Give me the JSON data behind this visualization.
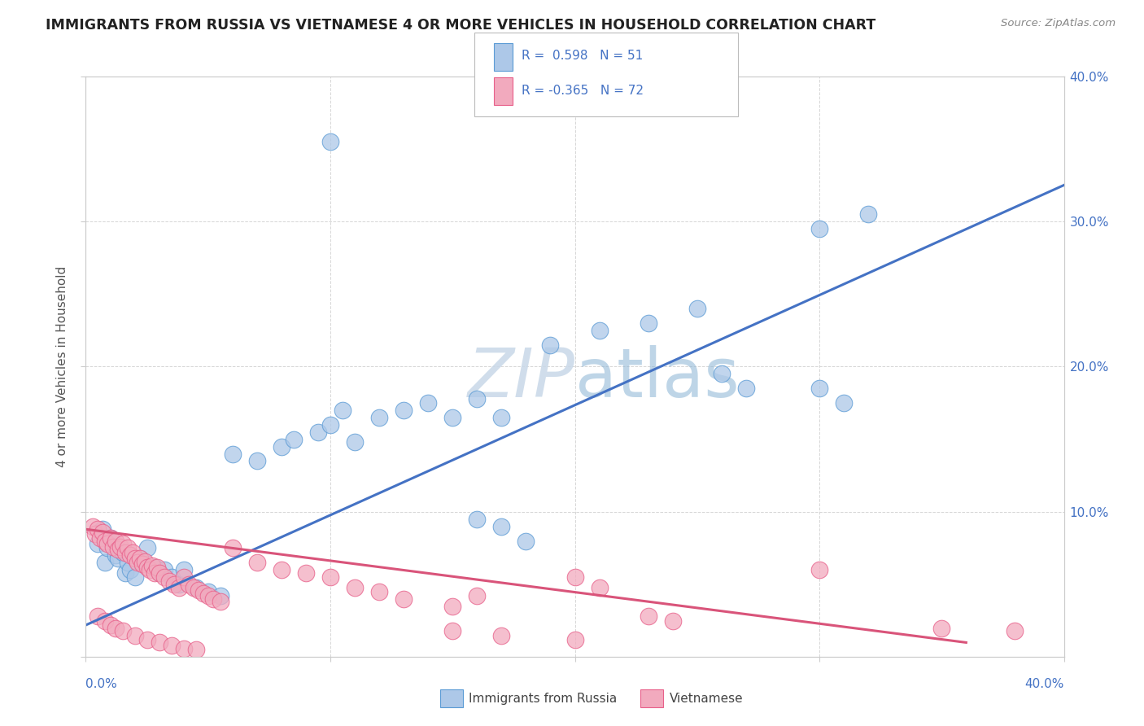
{
  "title": "IMMIGRANTS FROM RUSSIA VS VIETNAMESE 4 OR MORE VEHICLES IN HOUSEHOLD CORRELATION CHART",
  "source": "Source: ZipAtlas.com",
  "ylabel": "4 or more Vehicles in Household",
  "russia_color": "#adc8e8",
  "vietnamese_color": "#f2aabe",
  "russia_edge_color": "#5b9bd5",
  "vietnamese_edge_color": "#e8608a",
  "russia_line_color": "#4472c4",
  "vietnamese_line_color": "#d9547a",
  "xmin": 0.0,
  "xmax": 0.4,
  "ymin": 0.0,
  "ymax": 0.4,
  "watermark_text": "ZIPatlas",
  "watermark_color": "#c8d8e8",
  "russia_line_x0": 0.0,
  "russia_line_y0": 0.022,
  "russia_line_x1": 0.4,
  "russia_line_y1": 0.325,
  "viet_line_x0": 0.0,
  "viet_line_y0": 0.088,
  "viet_line_x1": 0.36,
  "viet_line_y1": 0.01,
  "russia_points": [
    [
      0.005,
      0.078
    ],
    [
      0.007,
      0.088
    ],
    [
      0.008,
      0.065
    ],
    [
      0.009,
      0.075
    ],
    [
      0.01,
      0.082
    ],
    [
      0.012,
      0.07
    ],
    [
      0.013,
      0.068
    ],
    [
      0.015,
      0.072
    ],
    [
      0.016,
      0.058
    ],
    [
      0.017,
      0.065
    ],
    [
      0.018,
      0.06
    ],
    [
      0.02,
      0.055
    ],
    [
      0.022,
      0.068
    ],
    [
      0.025,
      0.075
    ],
    [
      0.028,
      0.062
    ],
    [
      0.03,
      0.058
    ],
    [
      0.032,
      0.06
    ],
    [
      0.035,
      0.055
    ],
    [
      0.038,
      0.05
    ],
    [
      0.04,
      0.06
    ],
    [
      0.045,
      0.048
    ],
    [
      0.05,
      0.045
    ],
    [
      0.055,
      0.042
    ],
    [
      0.06,
      0.14
    ],
    [
      0.07,
      0.135
    ],
    [
      0.08,
      0.145
    ],
    [
      0.085,
      0.15
    ],
    [
      0.095,
      0.155
    ],
    [
      0.1,
      0.16
    ],
    [
      0.105,
      0.17
    ],
    [
      0.11,
      0.148
    ],
    [
      0.12,
      0.165
    ],
    [
      0.13,
      0.17
    ],
    [
      0.14,
      0.175
    ],
    [
      0.15,
      0.165
    ],
    [
      0.16,
      0.178
    ],
    [
      0.17,
      0.165
    ],
    [
      0.19,
      0.215
    ],
    [
      0.21,
      0.225
    ],
    [
      0.23,
      0.23
    ],
    [
      0.25,
      0.24
    ],
    [
      0.26,
      0.195
    ],
    [
      0.27,
      0.185
    ],
    [
      0.3,
      0.185
    ],
    [
      0.31,
      0.175
    ],
    [
      0.1,
      0.355
    ],
    [
      0.3,
      0.295
    ],
    [
      0.32,
      0.305
    ],
    [
      0.16,
      0.095
    ],
    [
      0.17,
      0.09
    ],
    [
      0.18,
      0.08
    ]
  ],
  "vietnamese_points": [
    [
      0.003,
      0.09
    ],
    [
      0.004,
      0.085
    ],
    [
      0.005,
      0.088
    ],
    [
      0.006,
      0.082
    ],
    [
      0.007,
      0.086
    ],
    [
      0.008,
      0.08
    ],
    [
      0.009,
      0.078
    ],
    [
      0.01,
      0.082
    ],
    [
      0.011,
      0.076
    ],
    [
      0.012,
      0.08
    ],
    [
      0.013,
      0.074
    ],
    [
      0.014,
      0.076
    ],
    [
      0.015,
      0.078
    ],
    [
      0.016,
      0.072
    ],
    [
      0.017,
      0.075
    ],
    [
      0.018,
      0.07
    ],
    [
      0.019,
      0.072
    ],
    [
      0.02,
      0.068
    ],
    [
      0.021,
      0.065
    ],
    [
      0.022,
      0.068
    ],
    [
      0.023,
      0.064
    ],
    [
      0.024,
      0.066
    ],
    [
      0.025,
      0.062
    ],
    [
      0.026,
      0.06
    ],
    [
      0.027,
      0.063
    ],
    [
      0.028,
      0.058
    ],
    [
      0.029,
      0.062
    ],
    [
      0.03,
      0.058
    ],
    [
      0.032,
      0.055
    ],
    [
      0.034,
      0.052
    ],
    [
      0.036,
      0.05
    ],
    [
      0.038,
      0.048
    ],
    [
      0.04,
      0.055
    ],
    [
      0.042,
      0.05
    ],
    [
      0.044,
      0.048
    ],
    [
      0.046,
      0.046
    ],
    [
      0.048,
      0.044
    ],
    [
      0.05,
      0.042
    ],
    [
      0.052,
      0.04
    ],
    [
      0.055,
      0.038
    ],
    [
      0.005,
      0.028
    ],
    [
      0.008,
      0.025
    ],
    [
      0.01,
      0.022
    ],
    [
      0.012,
      0.02
    ],
    [
      0.015,
      0.018
    ],
    [
      0.02,
      0.015
    ],
    [
      0.025,
      0.012
    ],
    [
      0.03,
      0.01
    ],
    [
      0.035,
      0.008
    ],
    [
      0.04,
      0.006
    ],
    [
      0.045,
      0.005
    ],
    [
      0.06,
      0.075
    ],
    [
      0.07,
      0.065
    ],
    [
      0.08,
      0.06
    ],
    [
      0.09,
      0.058
    ],
    [
      0.1,
      0.055
    ],
    [
      0.11,
      0.048
    ],
    [
      0.12,
      0.045
    ],
    [
      0.13,
      0.04
    ],
    [
      0.15,
      0.035
    ],
    [
      0.16,
      0.042
    ],
    [
      0.2,
      0.055
    ],
    [
      0.21,
      0.048
    ],
    [
      0.23,
      0.028
    ],
    [
      0.24,
      0.025
    ],
    [
      0.3,
      0.06
    ],
    [
      0.35,
      0.02
    ],
    [
      0.38,
      0.018
    ],
    [
      0.15,
      0.018
    ],
    [
      0.17,
      0.015
    ],
    [
      0.2,
      0.012
    ]
  ]
}
